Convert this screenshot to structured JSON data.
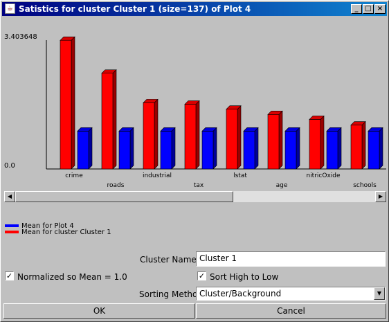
{
  "window": {
    "title": "Satistics for cluster Cluster 1 (size=137) of Plot 4",
    "app_icon": "java-cup-icon",
    "minimize": "_",
    "maximize": "□",
    "close": "×"
  },
  "chart_data": {
    "type": "bar",
    "y_top_label": "3.403648",
    "y_bottom_label": "0.0",
    "ylim": [
      0,
      3.403648
    ],
    "categories": [
      "crime",
      "roads",
      "industrial",
      "tax",
      "lstat",
      "age",
      "nitricOxide",
      "schools"
    ],
    "series": [
      {
        "name": "Mean for cluster Cluster 1",
        "color": "#ff0000",
        "values": [
          3.4,
          2.53,
          1.75,
          1.71,
          1.58,
          1.44,
          1.31,
          1.16
        ]
      },
      {
        "name": "Mean for Plot 4",
        "color": "#0000ff",
        "values": [
          1.0,
          1.0,
          1.0,
          1.0,
          1.0,
          1.0,
          1.0,
          1.0
        ]
      }
    ],
    "grid": false
  },
  "legend": {
    "items": [
      {
        "label": "Mean for Plot 4",
        "color": "#0000ff"
      },
      {
        "label": "Mean for cluster Cluster 1",
        "color": "#ff0000"
      }
    ]
  },
  "form": {
    "cluster_name_label": "Cluster Name",
    "cluster_name_value": "Cluster 1",
    "normalized_label": "Normalized so Mean = 1.0",
    "normalized_checked": "✓",
    "sort_label": "Sort High to Low",
    "sort_checked": "✓",
    "sorting_method_label": "Sorting Method",
    "sorting_method_value": "Cluster/Background"
  },
  "buttons": {
    "ok": "OK",
    "cancel": "Cancel"
  },
  "scrollbar": {
    "left_arrow": "◀",
    "right_arrow": "▶",
    "select_arrow": "▼"
  }
}
